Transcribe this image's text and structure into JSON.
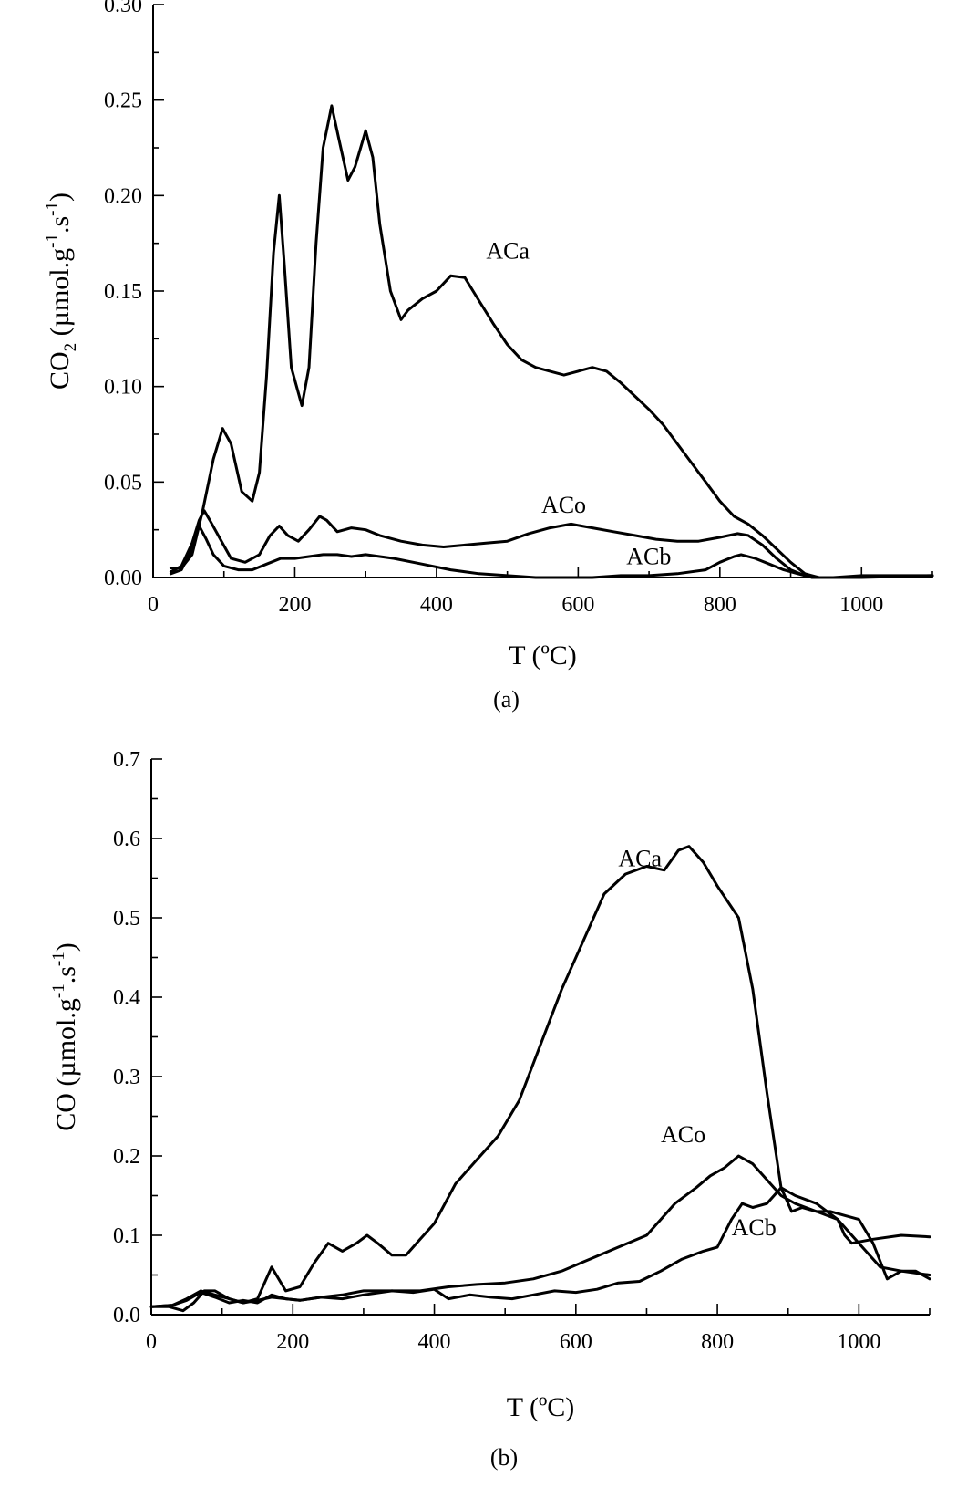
{
  "chart_data": [
    {
      "type": "line",
      "panel_caption": "(a)",
      "xlabel": "T (ºC)",
      "ylabel_parts": {
        "main": "CO",
        "sub": "2",
        "unit_start": " (µmol.g",
        "exp1": "-1",
        "mid": ".s",
        "exp2": "-1",
        "end": ")"
      },
      "xlim": [
        0,
        1100
      ],
      "ylim": [
        0,
        0.3
      ],
      "x_ticks": [
        0,
        200,
        400,
        600,
        800,
        1000
      ],
      "y_ticks": [
        "0.00",
        "0.05",
        "0.10",
        "0.15",
        "0.20",
        "0.25",
        "0.30"
      ],
      "grid": false,
      "series": [
        {
          "name": "ACa",
          "label_at": [
            470,
            0.167
          ],
          "x": [
            25,
            40,
            55,
            70,
            85,
            98,
            110,
            125,
            140,
            150,
            160,
            170,
            178,
            185,
            195,
            210,
            220,
            230,
            240,
            252,
            262,
            275,
            285,
            300,
            310,
            320,
            335,
            350,
            360,
            380,
            400,
            420,
            440,
            460,
            480,
            500,
            520,
            540,
            560,
            580,
            600,
            620,
            640,
            660,
            680,
            700,
            720,
            740,
            760,
            780,
            800,
            820,
            840,
            860,
            880,
            900,
            920,
            940,
            960,
            1000,
            1050,
            1100
          ],
          "y": [
            0.005,
            0.005,
            0.012,
            0.035,
            0.062,
            0.078,
            0.07,
            0.045,
            0.04,
            0.055,
            0.105,
            0.17,
            0.2,
            0.165,
            0.11,
            0.09,
            0.11,
            0.175,
            0.225,
            0.247,
            0.23,
            0.208,
            0.215,
            0.234,
            0.22,
            0.185,
            0.15,
            0.135,
            0.14,
            0.146,
            0.15,
            0.158,
            0.157,
            0.145,
            0.133,
            0.122,
            0.114,
            0.11,
            0.108,
            0.106,
            0.108,
            0.11,
            0.108,
            0.102,
            0.095,
            0.088,
            0.08,
            0.07,
            0.06,
            0.05,
            0.04,
            0.032,
            0.028,
            0.022,
            0.015,
            0.008,
            0.002,
            0.0,
            0.0,
            0.001,
            0.001,
            0.001
          ]
        },
        {
          "name": "ACo",
          "label_at": [
            548,
            0.034
          ],
          "x": [
            25,
            40,
            55,
            65,
            72,
            80,
            95,
            110,
            130,
            150,
            165,
            178,
            190,
            205,
            220,
            235,
            245,
            260,
            280,
            300,
            320,
            350,
            380,
            410,
            440,
            470,
            500,
            530,
            560,
            590,
            620,
            650,
            680,
            710,
            740,
            770,
            800,
            825,
            840,
            860,
            880,
            900,
            920,
            940,
            980,
            1100
          ],
          "y": [
            0.003,
            0.006,
            0.018,
            0.03,
            0.035,
            0.03,
            0.02,
            0.01,
            0.008,
            0.012,
            0.022,
            0.027,
            0.022,
            0.019,
            0.025,
            0.032,
            0.03,
            0.024,
            0.026,
            0.025,
            0.022,
            0.019,
            0.017,
            0.016,
            0.017,
            0.018,
            0.019,
            0.023,
            0.026,
            0.028,
            0.026,
            0.024,
            0.022,
            0.02,
            0.019,
            0.019,
            0.021,
            0.023,
            0.022,
            0.017,
            0.01,
            0.004,
            0.001,
            0.0,
            0.0,
            0.001
          ]
        },
        {
          "name": "ACb",
          "label_at": [
            668,
            0.007
          ],
          "x": [
            25,
            40,
            55,
            65,
            75,
            85,
            100,
            120,
            140,
            160,
            180,
            200,
            220,
            240,
            260,
            280,
            300,
            320,
            340,
            380,
            420,
            460,
            500,
            540,
            580,
            620,
            660,
            700,
            740,
            780,
            800,
            820,
            830,
            850,
            870,
            890,
            910,
            930,
            950,
            1000,
            1100
          ],
          "y": [
            0.002,
            0.004,
            0.015,
            0.027,
            0.02,
            0.012,
            0.006,
            0.004,
            0.004,
            0.007,
            0.01,
            0.01,
            0.011,
            0.012,
            0.012,
            0.011,
            0.012,
            0.011,
            0.01,
            0.007,
            0.004,
            0.002,
            0.001,
            0.0,
            0.0,
            0.0,
            0.001,
            0.001,
            0.002,
            0.004,
            0.008,
            0.011,
            0.012,
            0.01,
            0.007,
            0.004,
            0.002,
            0.0,
            0.0,
            0.0,
            0.001
          ]
        }
      ]
    },
    {
      "type": "line",
      "panel_caption": "(b)",
      "xlabel": "T (ºC)",
      "ylabel_parts": {
        "main": "CO",
        "sub": "",
        "unit_start": " (µmol.g",
        "exp1": "-1",
        "mid": ".s",
        "exp2": "-1",
        "end": ")"
      },
      "xlim": [
        0,
        1100
      ],
      "ylim": [
        0,
        0.7
      ],
      "x_ticks": [
        0,
        200,
        400,
        600,
        800,
        1000
      ],
      "y_ticks": [
        "0.0",
        "0.1",
        "0.2",
        "0.3",
        "0.4",
        "0.5",
        "0.6",
        "0.7"
      ],
      "grid": false,
      "series": [
        {
          "name": "ACa",
          "label_at": [
            660,
            0.565
          ],
          "x": [
            0,
            25,
            45,
            60,
            75,
            90,
            110,
            130,
            150,
            170,
            190,
            210,
            230,
            250,
            270,
            290,
            305,
            320,
            340,
            360,
            380,
            400,
            430,
            460,
            490,
            520,
            550,
            580,
            610,
            640,
            670,
            700,
            725,
            745,
            760,
            780,
            800,
            830,
            850,
            870,
            890,
            905,
            920,
            940,
            960,
            980,
            1000,
            1020,
            1040,
            1060,
            1080,
            1100
          ],
          "y": [
            0.01,
            0.01,
            0.005,
            0.015,
            0.03,
            0.03,
            0.02,
            0.015,
            0.02,
            0.06,
            0.03,
            0.035,
            0.065,
            0.09,
            0.08,
            0.09,
            0.1,
            0.09,
            0.075,
            0.075,
            0.095,
            0.115,
            0.165,
            0.195,
            0.225,
            0.27,
            0.34,
            0.41,
            0.47,
            0.53,
            0.555,
            0.565,
            0.56,
            0.585,
            0.59,
            0.57,
            0.54,
            0.5,
            0.41,
            0.28,
            0.16,
            0.13,
            0.135,
            0.13,
            0.13,
            0.125,
            0.12,
            0.09,
            0.045,
            0.055,
            0.055,
            0.045
          ]
        },
        {
          "name": "ACo",
          "label_at": [
            720,
            0.217
          ],
          "x": [
            0,
            30,
            50,
            70,
            90,
            110,
            130,
            150,
            170,
            190,
            210,
            240,
            270,
            300,
            340,
            380,
            420,
            460,
            500,
            540,
            580,
            620,
            660,
            700,
            740,
            770,
            790,
            810,
            830,
            850,
            870,
            890,
            910,
            940,
            970,
            980,
            990,
            1020,
            1060,
            1100
          ],
          "y": [
            0.01,
            0.012,
            0.018,
            0.028,
            0.022,
            0.015,
            0.018,
            0.015,
            0.025,
            0.02,
            0.018,
            0.022,
            0.02,
            0.025,
            0.03,
            0.03,
            0.035,
            0.038,
            0.04,
            0.045,
            0.055,
            0.07,
            0.085,
            0.1,
            0.14,
            0.16,
            0.175,
            0.185,
            0.2,
            0.19,
            0.17,
            0.15,
            0.14,
            0.13,
            0.12,
            0.1,
            0.09,
            0.095,
            0.1,
            0.098
          ]
        },
        {
          "name": "ACb",
          "label_at": [
            820,
            0.1
          ],
          "x": [
            0,
            30,
            50,
            70,
            90,
            110,
            130,
            150,
            170,
            190,
            210,
            240,
            270,
            300,
            340,
            370,
            400,
            420,
            450,
            480,
            510,
            540,
            570,
            600,
            630,
            660,
            690,
            720,
            750,
            780,
            800,
            820,
            835,
            850,
            870,
            890,
            910,
            940,
            970,
            990,
            1010,
            1030,
            1060,
            1100
          ],
          "y": [
            0.01,
            0.012,
            0.02,
            0.03,
            0.025,
            0.02,
            0.015,
            0.018,
            0.022,
            0.02,
            0.018,
            0.022,
            0.025,
            0.03,
            0.03,
            0.028,
            0.032,
            0.02,
            0.025,
            0.022,
            0.02,
            0.025,
            0.03,
            0.028,
            0.032,
            0.04,
            0.042,
            0.055,
            0.07,
            0.08,
            0.085,
            0.12,
            0.14,
            0.135,
            0.14,
            0.16,
            0.15,
            0.14,
            0.12,
            0.1,
            0.08,
            0.06,
            0.055,
            0.05
          ]
        }
      ]
    }
  ]
}
